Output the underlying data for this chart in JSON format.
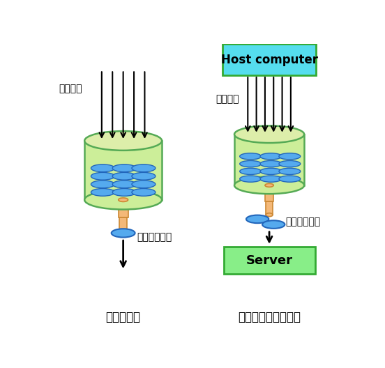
{
  "bg_color": "#ffffff",
  "title_left": "令牌桶算法",
  "title_right": "令牌桶算法应用图示",
  "label_data_req": "数据请求",
  "label_served": "被服务的请求",
  "host_label": "Host computer",
  "server_label": "Server",
  "bucket_color": "#ccee99",
  "bucket_top_color": "#ddeeaa",
  "token_color": "#55aaee",
  "token_edge": "#2266bb",
  "pipe_color": "#f4b878",
  "pipe_edge": "#cc8833",
  "arrow_color": "#000000",
  "host_bg": "#55ddee",
  "server_bg": "#88ee88",
  "box_edge": "#33aa33",
  "bucket_edge": "#55aa55"
}
